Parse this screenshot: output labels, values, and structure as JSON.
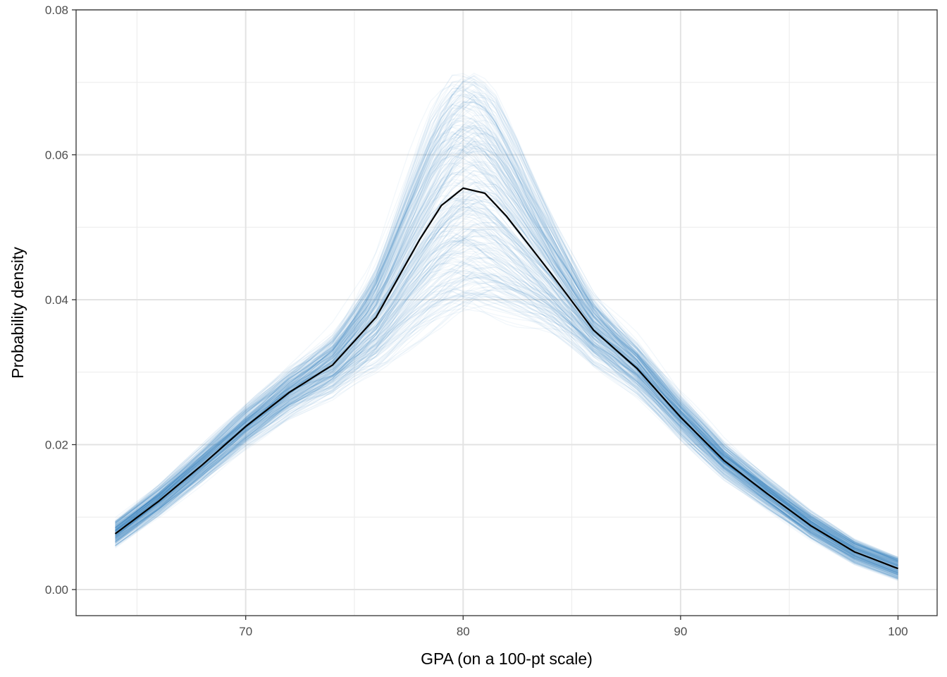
{
  "chart_data": {
    "type": "line",
    "xlabel": "GPA (on a 100-pt scale)",
    "ylabel": "Probability density",
    "xlim": [
      62.2,
      101.8
    ],
    "ylim": [
      -0.0036,
      0.08
    ],
    "x_ticks": [
      70,
      80,
      90,
      100
    ],
    "x_tick_labels": [
      "70",
      "80",
      "90",
      "100"
    ],
    "y_ticks": [
      0.0,
      0.02,
      0.04,
      0.06,
      0.08
    ],
    "y_tick_labels": [
      "0.00",
      "0.02",
      "0.04",
      "0.06",
      "0.08"
    ],
    "x_minor_ticks": [
      65,
      75,
      85,
      95
    ],
    "y_minor_ticks": [
      0.01,
      0.03,
      0.05,
      0.07
    ],
    "grid": true,
    "series": [
      {
        "role": "mean",
        "color": "#000000",
        "x": [
          64,
          66,
          68,
          70,
          72,
          74,
          76,
          78,
          79,
          80,
          81,
          82,
          84,
          86,
          88,
          90,
          92,
          94,
          96,
          98,
          100
        ],
        "y": [
          0.0077,
          0.0122,
          0.0172,
          0.0225,
          0.0272,
          0.031,
          0.0376,
          0.0483,
          0.053,
          0.0554,
          0.0547,
          0.0515,
          0.0438,
          0.0358,
          0.0305,
          0.0238,
          0.0178,
          0.0132,
          0.0088,
          0.0052,
          0.0029
        ]
      },
      {
        "role": "bootstrap-draws",
        "color": "#1f78b4",
        "opacity": 0.06
      }
    ]
  }
}
